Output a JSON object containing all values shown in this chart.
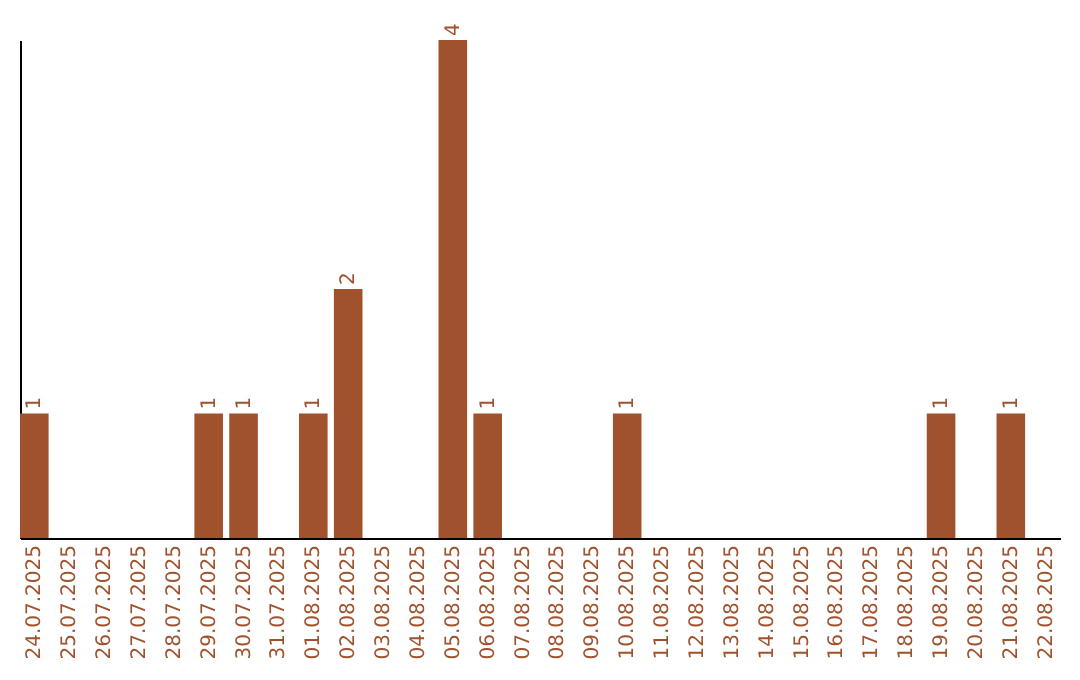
{
  "chart_data": {
    "type": "bar",
    "categories": [
      "24.07.2025",
      "25.07.2025",
      "26.07.2025",
      "27.07.2025",
      "28.07.2025",
      "29.07.2025",
      "30.07.2025",
      "31.07.2025",
      "01.08.2025",
      "02.08.2025",
      "03.08.2025",
      "04.08.2025",
      "05.08.2025",
      "06.08.2025",
      "07.08.2025",
      "08.08.2025",
      "09.08.2025",
      "10.08.2025",
      "11.08.2025",
      "12.08.2025",
      "13.08.2025",
      "14.08.2025",
      "15.08.2025",
      "16.08.2025",
      "17.08.2025",
      "18.08.2025",
      "19.08.2025",
      "20.08.2025",
      "21.08.2025",
      "22.08.2025"
    ],
    "values": [
      1,
      0,
      0,
      0,
      0,
      1,
      1,
      0,
      1,
      2,
      0,
      0,
      4,
      1,
      0,
      0,
      0,
      1,
      0,
      0,
      0,
      0,
      0,
      0,
      0,
      0,
      1,
      0,
      1,
      0
    ],
    "value_labels": [
      "1",
      null,
      null,
      null,
      null,
      "1",
      "1",
      null,
      "1",
      "2",
      null,
      null,
      "4",
      "1",
      null,
      null,
      null,
      "1",
      null,
      null,
      null,
      null,
      null,
      null,
      null,
      null,
      "1",
      null,
      "1",
      null
    ],
    "color": "#a0522d",
    "tick_labels": "x"
  }
}
